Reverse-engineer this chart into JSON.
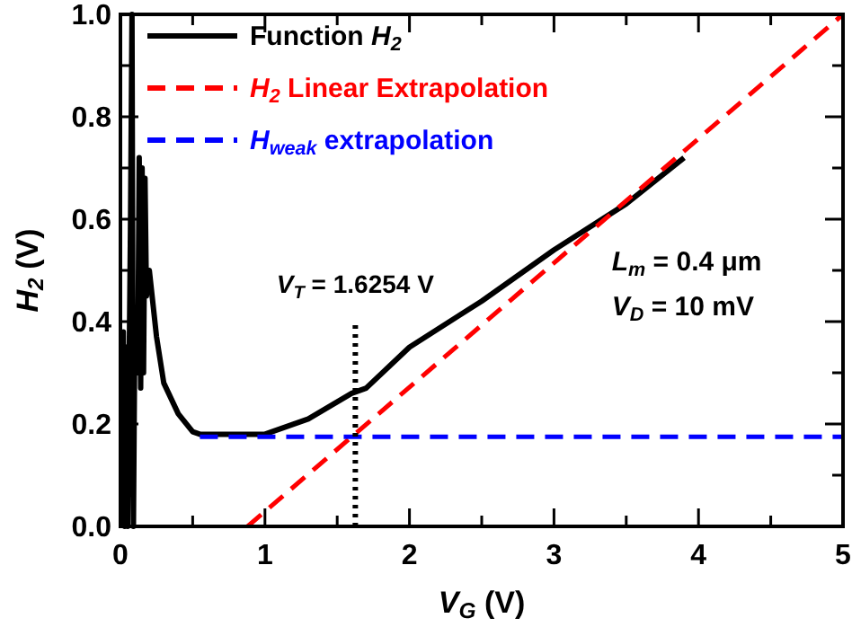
{
  "chart_data": {
    "type": "line",
    "xlabel": "V$_{G}$ (V)",
    "ylabel": "H$_{2}$ (V)",
    "xlim": [
      0,
      5
    ],
    "ylim": [
      0,
      1
    ],
    "xticks": [
      0,
      {
        "value": 0.5,
        "label": null
      },
      1,
      {
        "value": 1.5,
        "label": null
      },
      2,
      {
        "value": 2.5,
        "label": null
      },
      3,
      {
        "value": 3.5,
        "label": null
      },
      4,
      {
        "value": 4.5,
        "label": null
      },
      5
    ],
    "yticks": [
      {
        "value": 0,
        "label": "0.0"
      },
      {
        "value": 0.1,
        "label": null
      },
      {
        "value": 0.2,
        "label": "0.2"
      },
      {
        "value": 0.3,
        "label": null
      },
      {
        "value": 0.4,
        "label": "0.4"
      },
      {
        "value": 0.5,
        "label": null
      },
      {
        "value": 0.6,
        "label": "0.6"
      },
      {
        "value": 0.7,
        "label": null
      },
      {
        "value": 0.8,
        "label": "0.8"
      },
      {
        "value": 0.9,
        "label": null
      },
      {
        "value": 1,
        "label": "1.0"
      }
    ],
    "grid": false,
    "legend": "top left",
    "marker": "none",
    "series": [
      {
        "name": "Function H$_{2}$",
        "color": "#000000",
        "line_style": "solid",
        "x": [
          0.01,
          0.02,
          0.03,
          0.04,
          0.05,
          0.07,
          0.08,
          0.09,
          0.1,
          0.12,
          0.13,
          0.14,
          0.15,
          0.16,
          0.17,
          0.18,
          0.2,
          0.25,
          0.3,
          0.4,
          0.5,
          0.55,
          0.8,
          1.0,
          1.3,
          1.6,
          1.7,
          2.0,
          2.5,
          3.0,
          3.5,
          3.9
        ],
        "values": [
          0,
          0.38,
          0,
          0.35,
          0,
          0.6,
          1.0,
          0,
          0.4,
          0.3,
          0.72,
          0.27,
          0.7,
          0.3,
          0.68,
          0.45,
          0.5,
          0.37,
          0.28,
          0.22,
          0.185,
          0.18,
          0.18,
          0.18,
          0.21,
          0.26,
          0.27,
          0.35,
          0.44,
          0.54,
          0.63,
          0.72
        ]
      },
      {
        "name": "H$_{2}$ Linear Extrapolation",
        "color": "#ff0000",
        "line_style": "dashed",
        "x": [
          0.88,
          5
        ],
        "values": [
          0,
          1.0
        ]
      },
      {
        "name": "H$_{weak}$ extrapolation",
        "color": "#0000ff",
        "line_style": "dashed",
        "x": [
          0.55,
          5
        ],
        "values": [
          0.175,
          0.175
        ]
      }
    ],
    "ref_lines": [
      {
        "axis": "x",
        "value": 1.6254,
        "label": "V$_{T}$ = 1.6254 V",
        "color": "#000000",
        "line_style": "dotted"
      }
    ],
    "annotations": [
      "L$_{m}$ = 0.4 μm",
      "V$_{D}$ = 10 mV"
    ]
  }
}
